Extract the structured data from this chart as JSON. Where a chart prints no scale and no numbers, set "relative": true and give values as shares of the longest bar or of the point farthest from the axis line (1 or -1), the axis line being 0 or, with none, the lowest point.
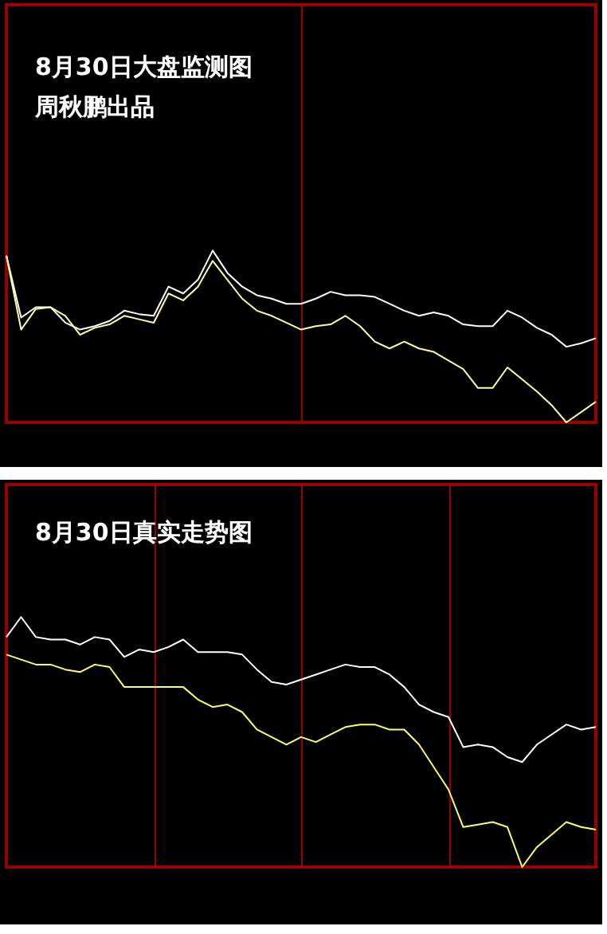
{
  "chart_data": [
    {
      "type": "line",
      "title": "8月30日大盘监测图",
      "subtitle": "周秋鹏出品",
      "relative": true,
      "grid": "x",
      "categories": [
        null,
        null,
        null,
        null,
        null,
        null,
        null,
        null,
        null,
        null,
        null,
        null,
        null,
        null,
        null,
        null,
        null,
        null,
        null,
        null,
        null,
        null,
        null,
        null,
        null,
        null,
        null,
        null,
        null,
        null,
        null,
        null,
        null,
        null,
        null,
        null,
        null,
        null,
        null,
        null,
        null
      ],
      "series": [
        {
          "color": "#ffffff",
          "values": [
            0.97,
            0.61,
            0.67,
            0.67,
            0.58,
            0.54,
            0.56,
            0.59,
            0.65,
            0.63,
            0.62,
            0.79,
            0.75,
            0.83,
            1.0,
            0.87,
            0.79,
            0.74,
            0.72,
            0.69,
            0.69,
            0.72,
            0.76,
            0.74,
            0.74,
            0.73,
            0.69,
            0.65,
            0.62,
            0.64,
            0.62,
            0.57,
            0.56,
            0.56,
            0.65,
            0.61,
            0.55,
            0.51,
            0.44,
            0.46,
            0.49
          ]
        },
        {
          "color": "#ffffa0",
          "values": [
            0.97,
            0.54,
            0.66,
            0.67,
            0.62,
            0.51,
            0.55,
            0.57,
            0.62,
            0.6,
            0.58,
            0.75,
            0.71,
            0.79,
            0.94,
            0.83,
            0.72,
            0.65,
            0.62,
            0.58,
            0.54,
            0.56,
            0.57,
            0.62,
            0.56,
            0.47,
            0.43,
            0.47,
            0.43,
            0.41,
            0.36,
            0.31,
            0.2,
            0.2,
            0.32,
            0.25,
            0.18,
            0.1,
            0,
            0.06,
            0.12
          ]
        }
      ]
    },
    {
      "type": "line",
      "title": "8月30日真实走势图",
      "relative": true,
      "grid": "x",
      "categories": [
        null,
        null,
        null,
        null,
        null,
        null,
        null,
        null,
        null,
        null,
        null,
        null,
        null,
        null,
        null,
        null,
        null,
        null,
        null,
        null,
        null,
        null,
        null,
        null,
        null,
        null,
        null,
        null,
        null,
        null,
        null,
        null,
        null,
        null,
        null,
        null,
        null,
        null,
        null,
        null,
        null
      ],
      "series": [
        {
          "color": "#ffffff",
          "values": [
            0.92,
            1.0,
            0.92,
            0.91,
            0.91,
            0.89,
            0.92,
            0.91,
            0.84,
            0.87,
            0.86,
            0.88,
            0.91,
            0.86,
            0.86,
            0.86,
            0.85,
            0.79,
            0.74,
            0.73,
            0.75,
            0.77,
            0.79,
            0.81,
            0.8,
            0.8,
            0.77,
            0.72,
            0.65,
            0.62,
            0.6,
            0.48,
            0.49,
            0.48,
            0.44,
            0.42,
            0.49,
            0.53,
            0.57,
            0.55,
            0.56
          ]
        },
        {
          "color": "#ffff66",
          "values": [
            0.85,
            0.83,
            0.81,
            0.81,
            0.79,
            0.78,
            0.81,
            0.8,
            0.72,
            0.72,
            0.72,
            0.72,
            0.72,
            0.67,
            0.64,
            0.65,
            0.62,
            0.55,
            0.52,
            0.49,
            0.52,
            0.5,
            0.53,
            0.56,
            0.57,
            0.57,
            0.55,
            0.55,
            0.49,
            0.4,
            0.31,
            0.16,
            0.17,
            0.18,
            0.16,
            0,
            0.08,
            0.13,
            0.18,
            0.16,
            0.15
          ]
        }
      ]
    }
  ]
}
